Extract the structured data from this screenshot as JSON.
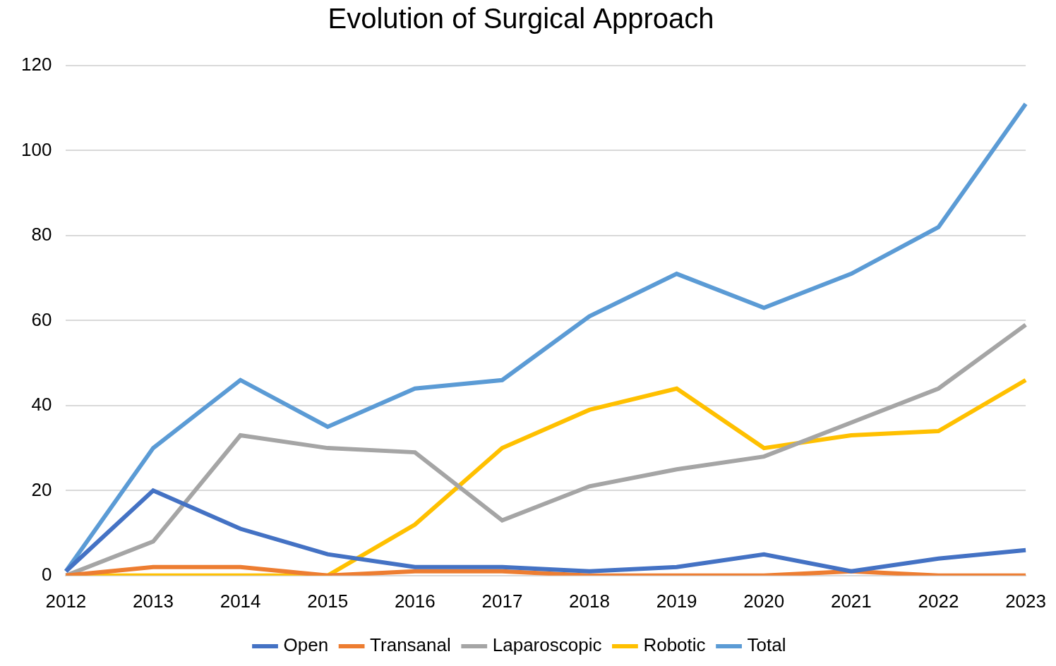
{
  "chart_data": {
    "type": "line",
    "title": "Evolution of Surgical Approach",
    "categories": [
      "2012",
      "2013",
      "2014",
      "2015",
      "2016",
      "2017",
      "2018",
      "2019",
      "2020",
      "2021",
      "2022",
      "2023"
    ],
    "series": [
      {
        "name": "Open",
        "color": "#4472c4",
        "values": [
          1,
          20,
          11,
          5,
          2,
          2,
          1,
          2,
          5,
          1,
          4,
          6
        ]
      },
      {
        "name": "Transanal",
        "color": "#ed7d31",
        "values": [
          0,
          2,
          2,
          0,
          1,
          1,
          0,
          0,
          0,
          1,
          0,
          0
        ]
      },
      {
        "name": "Laparoscopic",
        "color": "#a5a5a5",
        "values": [
          0,
          8,
          33,
          30,
          29,
          13,
          21,
          25,
          28,
          36,
          44,
          59
        ]
      },
      {
        "name": "Robotic",
        "color": "#ffc000",
        "values": [
          0,
          0,
          0,
          0,
          12,
          30,
          39,
          44,
          30,
          33,
          34,
          46
        ]
      },
      {
        "name": "Total",
        "color": "#5b9bd5",
        "values": [
          1,
          30,
          46,
          35,
          44,
          46,
          61,
          71,
          63,
          71,
          82,
          111
        ]
      }
    ],
    "ylim": [
      0,
      120
    ],
    "yticks": [
      0,
      20,
      40,
      60,
      80,
      100,
      120
    ],
    "grid": true,
    "legend": "bottom"
  }
}
